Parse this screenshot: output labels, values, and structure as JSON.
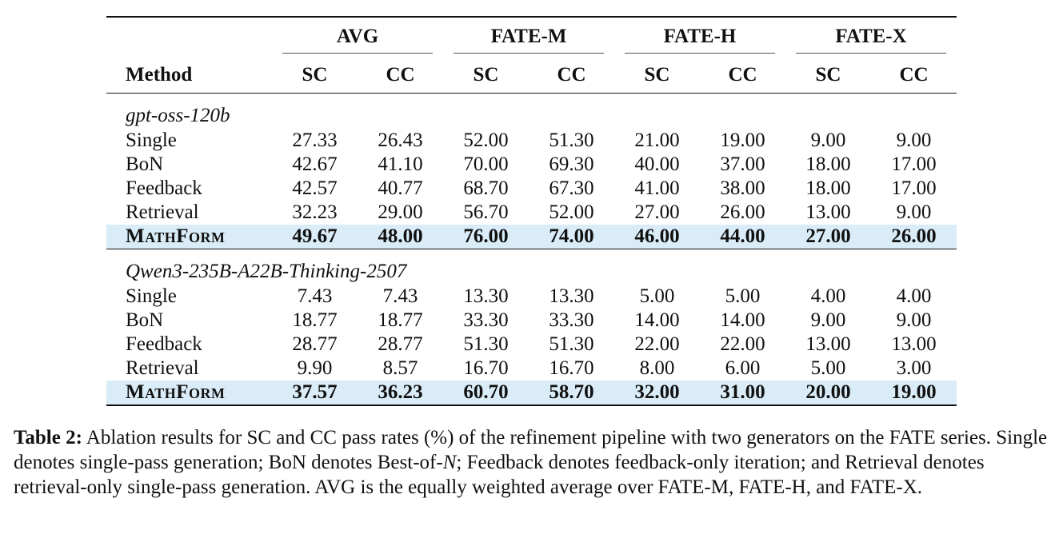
{
  "table": {
    "method_header": "Method",
    "groups": [
      "AVG",
      "FATE-M",
      "FATE-H",
      "FATE-X"
    ],
    "sub_headers": [
      "SC",
      "CC",
      "SC",
      "CC",
      "SC",
      "CC",
      "SC",
      "CC"
    ],
    "sections": [
      {
        "label": "gpt-oss-120b",
        "rows": [
          {
            "method": "Single",
            "values": [
              "27.33",
              "26.43",
              "52.00",
              "51.30",
              "21.00",
              "19.00",
              "9.00",
              "9.00"
            ]
          },
          {
            "method": "BoN",
            "values": [
              "42.67",
              "41.10",
              "70.00",
              "69.30",
              "40.00",
              "37.00",
              "18.00",
              "17.00"
            ]
          },
          {
            "method": "Feedback",
            "values": [
              "42.57",
              "40.77",
              "68.70",
              "67.30",
              "41.00",
              "38.00",
              "18.00",
              "17.00"
            ]
          },
          {
            "method": "Retrieval",
            "values": [
              "32.23",
              "29.00",
              "56.70",
              "52.00",
              "27.00",
              "26.00",
              "13.00",
              "9.00"
            ]
          },
          {
            "method": "MathForm",
            "values": [
              "49.67",
              "48.00",
              "76.00",
              "74.00",
              "46.00",
              "44.00",
              "27.00",
              "26.00"
            ],
            "highlight": true
          }
        ]
      },
      {
        "label": "Qwen3-235B-A22B-Thinking-2507",
        "rows": [
          {
            "method": "Single",
            "values": [
              "7.43",
              "7.43",
              "13.30",
              "13.30",
              "5.00",
              "5.00",
              "4.00",
              "4.00"
            ]
          },
          {
            "method": "BoN",
            "values": [
              "18.77",
              "18.77",
              "33.30",
              "33.30",
              "14.00",
              "14.00",
              "9.00",
              "9.00"
            ]
          },
          {
            "method": "Feedback",
            "values": [
              "28.77",
              "28.77",
              "51.30",
              "51.30",
              "22.00",
              "22.00",
              "13.00",
              "13.00"
            ]
          },
          {
            "method": "Retrieval",
            "values": [
              "9.90",
              "8.57",
              "16.70",
              "16.70",
              "8.00",
              "6.00",
              "5.00",
              "3.00"
            ]
          },
          {
            "method": "MathForm",
            "values": [
              "37.57",
              "36.23",
              "60.70",
              "58.70",
              "32.00",
              "31.00",
              "20.00",
              "19.00"
            ],
            "highlight": true
          }
        ]
      }
    ]
  },
  "caption": {
    "label": "Table 2:",
    "text_before_n": "Ablation results for SC and CC pass rates (%) of the refinement pipeline with two generators on the FATE series. Single denotes single-pass generation; BoN denotes Best-of-",
    "math_n": "N",
    "text_after_n": "; Feedback denotes feedback-only iteration; and Retrieval denotes retrieval-only single-pass generation. AVG is the equally weighted average over FATE-M, FATE-H, and FATE-X."
  },
  "colors": {
    "highlight_row": "#d9ecf7",
    "text": "#111111"
  }
}
